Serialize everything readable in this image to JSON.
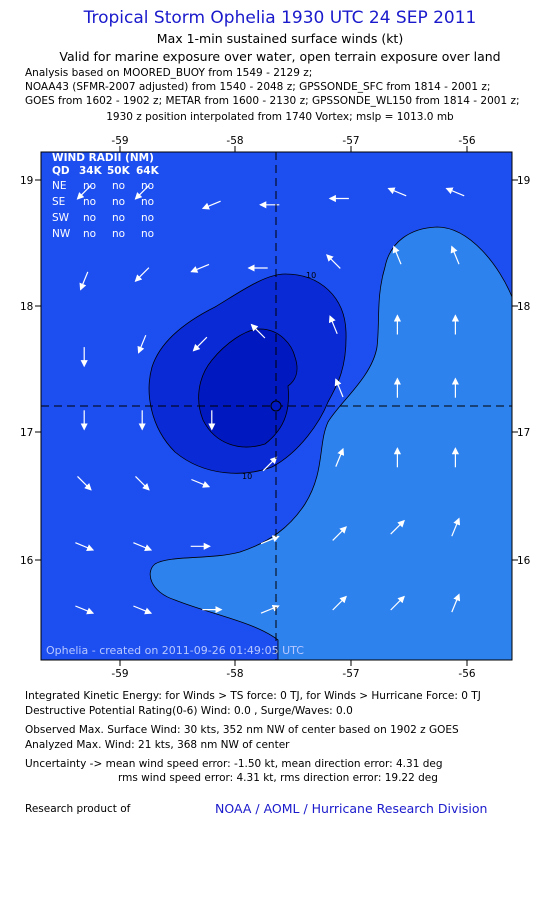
{
  "title": "Tropical Storm Ophelia 1930 UTC 24 SEP 2011",
  "subtitle1": "Max 1-min sustained surface winds (kt)",
  "subtitle2": "Valid for marine exposure over water, open terrain exposure over land",
  "analysis_lines": [
    "Analysis based on MOORED_BUOY from 1549 - 2129 z;",
    "NOAA43 (SFMR-2007 adjusted) from 1540 - 2048 z; GPSSONDE_SFC from 1814 - 2001 z;",
    "GOES from 1602 - 1902 z; METAR from 1600 - 2130 z; GPSSONDE_WL150 from 1814 - 2001 z;"
  ],
  "interpolation_note": "1930 z position interpolated from 1740 Vortex; mslp = 1013.0 mb",
  "map": {
    "lon_ticks": [
      "-59",
      "-58",
      "-57",
      "-56"
    ],
    "lat_ticks": [
      "19",
      "18",
      "17",
      "16"
    ],
    "contour_labels": [
      "10",
      "10"
    ],
    "colors": {
      "background": "#1d4ef0",
      "band_10_20": "#0a2ad6",
      "band_20_plus": "#0018c0",
      "light_region": "#2e82ee",
      "arrow": "#ffffff",
      "contour": "#000000"
    },
    "wind_radii": {
      "title": "WIND RADII (NM)",
      "header": [
        "QD",
        "34K",
        "50K",
        "64K"
      ],
      "rows": [
        [
          "NE",
          "no",
          "no",
          "no"
        ],
        [
          "SE",
          "no",
          "no",
          "no"
        ],
        [
          "SW",
          "no",
          "no",
          "no"
        ],
        [
          "NW",
          "no",
          "no",
          "no"
        ]
      ]
    },
    "credit": "Ophelia - created on 2011-09-26 01:49:05 UTC",
    "center_marker": "storm-center",
    "wind_vectors": [
      {
        "lon": -59.3,
        "lat": 18.9,
        "dir": "SW"
      },
      {
        "lon": -58.8,
        "lat": 18.9,
        "dir": "SW"
      },
      {
        "lon": -58.2,
        "lat": 18.8,
        "dir": "WSW"
      },
      {
        "lon": -57.7,
        "lat": 18.8,
        "dir": "W"
      },
      {
        "lon": -57.1,
        "lat": 18.85,
        "dir": "W"
      },
      {
        "lon": -56.6,
        "lat": 18.9,
        "dir": "WNW"
      },
      {
        "lon": -56.1,
        "lat": 18.9,
        "dir": "WNW"
      },
      {
        "lon": -59.3,
        "lat": 18.2,
        "dir": "SSW"
      },
      {
        "lon": -58.8,
        "lat": 18.25,
        "dir": "SW"
      },
      {
        "lon": -58.3,
        "lat": 18.3,
        "dir": "WSW"
      },
      {
        "lon": -57.8,
        "lat": 18.3,
        "dir": "W"
      },
      {
        "lon": -57.15,
        "lat": 18.35,
        "dir": "NW"
      },
      {
        "lon": -56.6,
        "lat": 18.4,
        "dir": "NNW"
      },
      {
        "lon": -56.1,
        "lat": 18.4,
        "dir": "NNW"
      },
      {
        "lon": -59.3,
        "lat": 17.6,
        "dir": "S"
      },
      {
        "lon": -58.8,
        "lat": 17.7,
        "dir": "SSW"
      },
      {
        "lon": -58.3,
        "lat": 17.7,
        "dir": "SW"
      },
      {
        "lon": -57.8,
        "lat": 17.8,
        "dir": "NW"
      },
      {
        "lon": -57.15,
        "lat": 17.85,
        "dir": "NNW"
      },
      {
        "lon": -56.6,
        "lat": 17.85,
        "dir": "N"
      },
      {
        "lon": -56.1,
        "lat": 17.85,
        "dir": "N"
      },
      {
        "lon": -59.3,
        "lat": 17.1,
        "dir": "S"
      },
      {
        "lon": -58.8,
        "lat": 17.1,
        "dir": "S"
      },
      {
        "lon": -58.2,
        "lat": 17.1,
        "dir": "S"
      },
      {
        "lon": -57.1,
        "lat": 17.35,
        "dir": "NNW"
      },
      {
        "lon": -56.6,
        "lat": 17.35,
        "dir": "N"
      },
      {
        "lon": -56.1,
        "lat": 17.35,
        "dir": "N"
      },
      {
        "lon": -59.3,
        "lat": 16.6,
        "dir": "SE"
      },
      {
        "lon": -58.8,
        "lat": 16.6,
        "dir": "SE"
      },
      {
        "lon": -58.3,
        "lat": 16.6,
        "dir": "ESE"
      },
      {
        "lon": -57.7,
        "lat": 16.75,
        "dir": "NE"
      },
      {
        "lon": -57.1,
        "lat": 16.8,
        "dir": "NNE"
      },
      {
        "lon": -56.6,
        "lat": 16.8,
        "dir": "N"
      },
      {
        "lon": -56.1,
        "lat": 16.8,
        "dir": "N"
      },
      {
        "lon": -59.3,
        "lat": 16.1,
        "dir": "ESE"
      },
      {
        "lon": -58.8,
        "lat": 16.1,
        "dir": "ESE"
      },
      {
        "lon": -58.3,
        "lat": 16.1,
        "dir": "E"
      },
      {
        "lon": -57.7,
        "lat": 16.15,
        "dir": "ENE"
      },
      {
        "lon": -57.1,
        "lat": 16.2,
        "dir": "NE"
      },
      {
        "lon": -56.6,
        "lat": 16.25,
        "dir": "NE"
      },
      {
        "lon": -56.1,
        "lat": 16.25,
        "dir": "NNE"
      },
      {
        "lon": -59.3,
        "lat": 15.6,
        "dir": "ESE"
      },
      {
        "lon": -58.8,
        "lat": 15.6,
        "dir": "ESE"
      },
      {
        "lon": -58.2,
        "lat": 15.6,
        "dir": "E"
      },
      {
        "lon": -57.7,
        "lat": 15.6,
        "dir": "ENE"
      },
      {
        "lon": -57.1,
        "lat": 15.65,
        "dir": "NE"
      },
      {
        "lon": -56.6,
        "lat": 15.65,
        "dir": "NE"
      },
      {
        "lon": -56.1,
        "lat": 15.65,
        "dir": "NNE"
      }
    ]
  },
  "info_lines": [
    "Integrated Kinetic Energy:  for Winds > TS force: 0 TJ,  for Winds > Hurricane Force: 0 TJ",
    "Destructive Potential Rating(0-6)   Wind: 0.0 , Surge/Waves: 0.0",
    "Observed Max. Surface Wind: 30 kts, 352 nm NW of center based on 1902 z GOES",
    "Analyzed Max. Wind: 21 kts, 368 nm NW of center",
    "Uncertainty -> mean wind speed error:  -1.50 kt,   mean direction error: 4.31 deg",
    "rms wind speed error:  4.31 kt,   rms direction error: 19.22 deg"
  ],
  "footer": {
    "label": "Research product of",
    "link": "NOAA / AOML / Hurricane Research Division"
  }
}
